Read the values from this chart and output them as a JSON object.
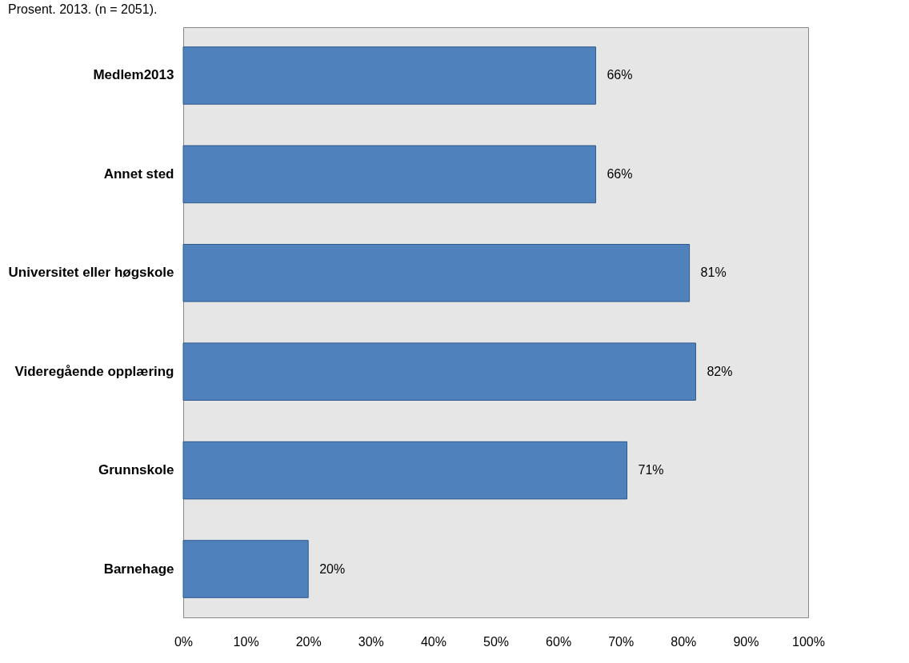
{
  "chart_data": {
    "type": "bar",
    "orientation": "horizontal",
    "title": "Prosent. 2013. (n = 2051).",
    "categories": [
      "Medlem2013",
      "Annet sted",
      "Universitet eller høgskole",
      "Videregående opplæring",
      "Grunnskole",
      "Barnehage"
    ],
    "values": [
      66,
      66,
      81,
      82,
      71,
      20
    ],
    "value_labels": [
      "66%",
      "66%",
      "81%",
      "82%",
      "71%",
      "20%"
    ],
    "color": "#4f81bd",
    "xlim": [
      0,
      100
    ],
    "xticks": [
      {
        "value": 0,
        "label": "0%"
      },
      {
        "value": 10,
        "label": "10%"
      },
      {
        "value": 20,
        "label": "20%"
      },
      {
        "value": 30,
        "label": "30%"
      },
      {
        "value": 40,
        "label": "40%"
      },
      {
        "value": 50,
        "label": "50%"
      },
      {
        "value": 60,
        "label": "60%"
      },
      {
        "value": 70,
        "label": "70%"
      },
      {
        "value": 80,
        "label": "80%"
      },
      {
        "value": 90,
        "label": "90%"
      },
      {
        "value": 100,
        "label": "100%"
      }
    ],
    "grid": false
  }
}
